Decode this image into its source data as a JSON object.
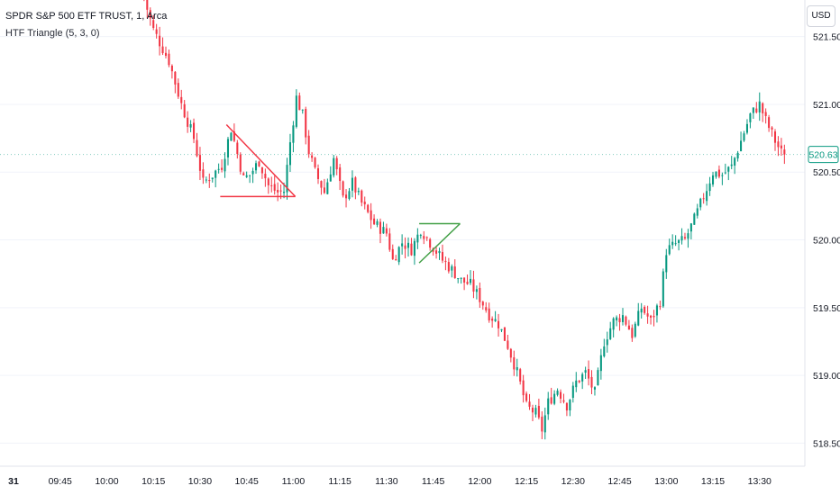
{
  "legend": {
    "symbol": "SPDR S&P 500 ETF TRUST, 1, Arca",
    "indicator": "HTF Triangle (5, 3, 0)"
  },
  "currency_button": "USD",
  "colors": {
    "up": "#089981",
    "down": "#f23645",
    "grid": "#f0f3fa",
    "bear_triangle": "#f23645",
    "bull_triangle": "#43a047",
    "last_price": "#089981"
  },
  "chart_data": {
    "type": "candlestick",
    "interval": "1 minute",
    "ylim": [
      518.33,
      521.77
    ],
    "y_ticks": [
      518.5,
      519.0,
      519.5,
      520.0,
      520.5,
      521.0,
      521.5
    ],
    "y_tick_labels": [
      "518.50",
      "519.00",
      "519.50",
      "520.00",
      "520.50",
      "521.00",
      "521.50"
    ],
    "x_tick_labels": [
      "31",
      "09:45",
      "10:00",
      "10:15",
      "10:30",
      "10:45",
      "11:00",
      "11:15",
      "11:30",
      "11:45",
      "12:00",
      "12:15",
      "12:30",
      "12:45",
      "13:00",
      "13:15",
      "13:30"
    ],
    "x_tick_minutes": [
      570,
      585,
      600,
      615,
      630,
      645,
      660,
      675,
      690,
      705,
      720,
      735,
      750,
      765,
      780,
      795,
      810
    ],
    "last_price": 520.63,
    "last_price_label": "520.63",
    "close_path": [
      [
        612,
        521.78
      ],
      [
        615,
        521.55
      ],
      [
        620,
        521.32
      ],
      [
        624,
        521.0
      ],
      [
        628,
        520.75
      ],
      [
        631,
        520.42
      ],
      [
        634,
        520.48
      ],
      [
        637,
        520.55
      ],
      [
        640,
        520.82
      ],
      [
        644,
        520.45
      ],
      [
        646,
        520.48
      ],
      [
        649,
        520.58
      ],
      [
        652,
        520.4
      ],
      [
        655,
        520.35
      ],
      [
        657,
        520.36
      ],
      [
        659,
        520.72
      ],
      [
        661,
        521.05
      ],
      [
        663,
        520.92
      ],
      [
        665,
        520.65
      ],
      [
        667,
        520.5
      ],
      [
        670,
        520.35
      ],
      [
        673,
        520.6
      ],
      [
        676,
        520.3
      ],
      [
        679,
        520.42
      ],
      [
        682,
        520.27
      ],
      [
        686,
        520.12
      ],
      [
        690,
        520.05
      ],
      [
        692,
        519.85
      ],
      [
        695,
        519.98
      ],
      [
        698,
        519.93
      ],
      [
        701,
        520.08
      ],
      [
        704,
        519.98
      ],
      [
        708,
        519.85
      ],
      [
        711,
        519.78
      ],
      [
        714,
        519.7
      ],
      [
        717,
        519.67
      ],
      [
        720,
        519.57
      ],
      [
        723,
        519.45
      ],
      [
        726,
        519.38
      ],
      [
        729,
        519.22
      ],
      [
        732,
        519.02
      ],
      [
        735,
        518.77
      ],
      [
        738,
        518.72
      ],
      [
        740,
        518.6
      ],
      [
        742,
        518.8
      ],
      [
        745,
        518.9
      ],
      [
        748,
        518.78
      ],
      [
        751,
        518.95
      ],
      [
        754,
        519.02
      ],
      [
        757,
        518.87
      ],
      [
        760,
        519.25
      ],
      [
        763,
        519.4
      ],
      [
        766,
        519.44
      ],
      [
        769,
        519.3
      ],
      [
        772,
        519.5
      ],
      [
        775,
        519.4
      ],
      [
        778,
        519.55
      ],
      [
        780,
        519.92
      ],
      [
        783,
        519.97
      ],
      [
        786,
        520.0
      ],
      [
        789,
        520.15
      ],
      [
        792,
        520.32
      ],
      [
        795,
        520.5
      ],
      [
        798,
        520.48
      ],
      [
        801,
        520.54
      ],
      [
        804,
        520.73
      ],
      [
        807,
        520.92
      ],
      [
        810,
        521.0
      ],
      [
        812,
        520.88
      ],
      [
        815,
        520.73
      ],
      [
        818,
        520.6
      ]
    ],
    "triangles": [
      {
        "bias": "bearish",
        "apex": [
          638.5,
          520.85
        ],
        "upper_end": [
          659.5,
          520.32
        ],
        "base_y": 520.32,
        "base_start": 636.5
      },
      {
        "bias": "bullish",
        "apex": [
          700.5,
          519.83
        ],
        "upper_end": [
          712.5,
          520.12
        ],
        "top_y": 520.12,
        "top_start": 700.5
      }
    ]
  }
}
